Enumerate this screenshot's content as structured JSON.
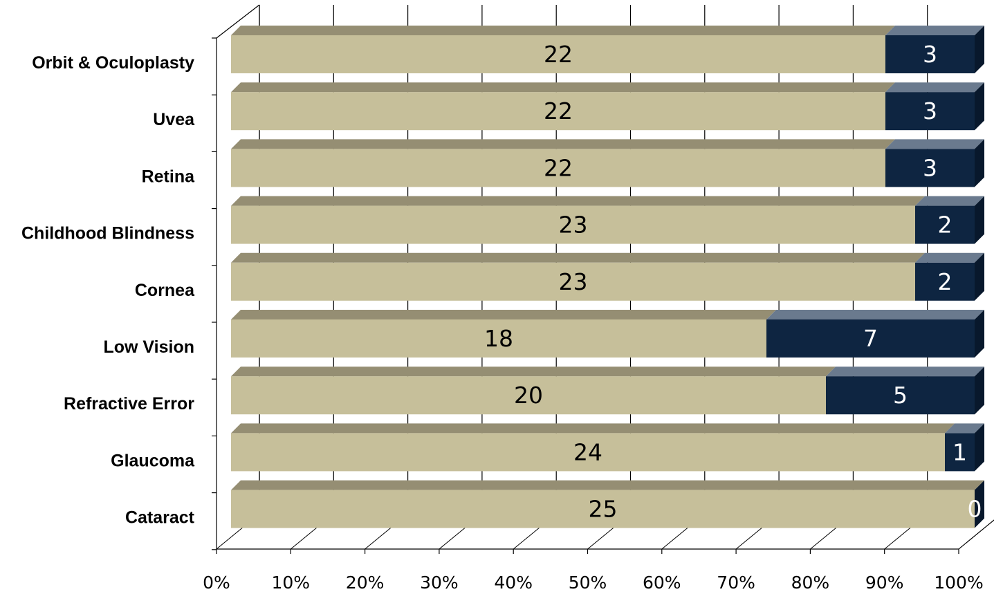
{
  "chart_data": {
    "type": "bar",
    "orientation": "horizontal",
    "stacking": "percent",
    "three_d": true,
    "categories": [
      "Orbit & Oculoplasty",
      "Uvea",
      "Retina ",
      "Childhood Blindness",
      "Cornea",
      "Low Vision",
      "Refractive Error ",
      "Glaucoma",
      "Cataract"
    ],
    "series": [
      {
        "values": [
          22,
          22,
          22,
          23,
          23,
          18,
          20,
          24,
          25
        ],
        "color": "#c6bf9a",
        "label_color": "#000000"
      },
      {
        "values": [
          3,
          3,
          3,
          2,
          2,
          7,
          5,
          1,
          0
        ],
        "color": "#0e2541",
        "label_color": "#ffffff"
      }
    ],
    "x_ticks": [
      "0%",
      "10%",
      "20%",
      "30%",
      "40%",
      "50%",
      "60%",
      "70%",
      "80%",
      "90%",
      "100%"
    ],
    "xlim": [
      0,
      100
    ],
    "grid": true,
    "legend": "none",
    "title": "",
    "xlabel": "",
    "ylabel": ""
  }
}
